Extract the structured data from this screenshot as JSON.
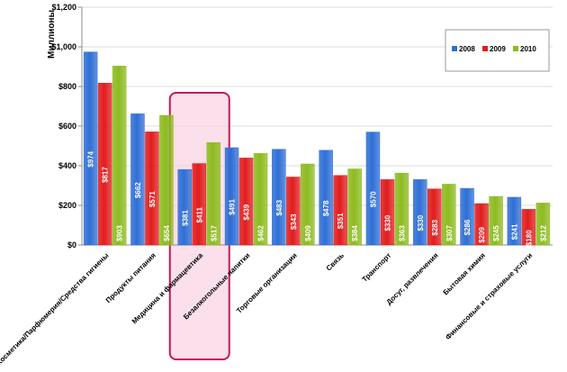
{
  "colors": {
    "series_2008": "#2f6fd6",
    "series_2009": "#e11d1d",
    "series_2010": "#8dbb20",
    "highlight_border": "#c2185b",
    "highlight_fill": "#f8c5d8",
    "grid": "#dedede",
    "axis": "#8c8c8c",
    "text": "#000000",
    "data_label": "#ffffff"
  },
  "chart_data": {
    "type": "bar",
    "title": "",
    "xlabel": "",
    "ylabel": "Миллионы",
    "ylim": [
      0,
      1200
    ],
    "yticks": [
      0,
      200,
      400,
      600,
      800,
      1000,
      1200
    ],
    "ytick_labels": [
      "$0",
      "$200",
      "$400",
      "$600",
      "$800",
      "$1,000",
      "$1,200"
    ],
    "grid": true,
    "legend_position": "top-right",
    "highlighted_category": "Медицина и фармацевтика",
    "categories": [
      "Косметика/Парфюмерия/Средства гигиены",
      "Продукты питания",
      "Медицина и фармацевтика",
      "Безалкогольные напитки",
      "Торговые организации",
      "Связь",
      "Транспорт",
      "Досуг, развлечения",
      "Бытовая химия",
      "Финансовые и страховые услуги"
    ],
    "series": [
      {
        "name": "2008",
        "values": [
          974,
          662,
          381,
          491,
          483,
          478,
          570,
          330,
          286,
          241
        ],
        "labels": [
          "$974",
          "$662",
          "$381",
          "$491",
          "$483",
          "$478",
          "$570",
          "$330",
          "$286",
          "$241"
        ]
      },
      {
        "name": "2009",
        "values": [
          817,
          571,
          411,
          439,
          343,
          351,
          330,
          283,
          209,
          180
        ],
        "labels": [
          "$817",
          "$571",
          "$411",
          "$439",
          "$343",
          "$351",
          "$330",
          "$283",
          "$209",
          "$180"
        ]
      },
      {
        "name": "2010",
        "values": [
          903,
          654,
          517,
          462,
          409,
          384,
          363,
          307,
          245,
          212
        ],
        "labels": [
          "$903",
          "$654",
          "$517",
          "$462",
          "$409",
          "$384",
          "$363",
          "$307",
          "$245",
          "$212"
        ]
      }
    ]
  }
}
